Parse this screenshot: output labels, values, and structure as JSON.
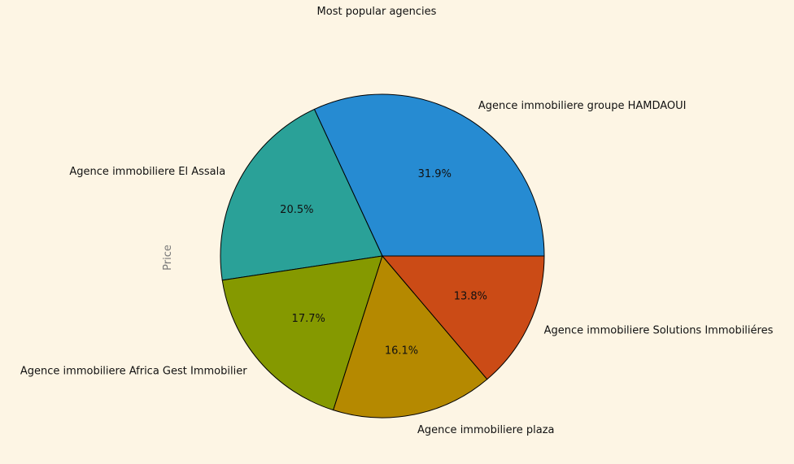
{
  "chart_data": {
    "type": "pie",
    "title": "Most popular agencies",
    "ylabel": "Price",
    "xlabel": "",
    "slices": [
      {
        "label": "Agence immobiliere groupe HAMDAOUI",
        "pct_label": "31.9%",
        "value": 31.9,
        "color": "#268bd2"
      },
      {
        "label": "Agence immobiliere El Assala",
        "pct_label": "20.5%",
        "value": 20.5,
        "color": "#2aa198"
      },
      {
        "label": "Agence immobiliere Africa Gest Immobilier",
        "pct_label": "17.7%",
        "value": 17.7,
        "color": "#859900"
      },
      {
        "label": "Agence immobiliere plaza",
        "pct_label": "16.1%",
        "value": 16.1,
        "color": "#b58900"
      },
      {
        "label": "Agence immobiliere Solutions Immobiliéres",
        "pct_label": "13.8%",
        "value": 13.8,
        "color": "#cb4b16"
      }
    ],
    "background": "#fdf5e4",
    "edge_color": "#000000"
  }
}
